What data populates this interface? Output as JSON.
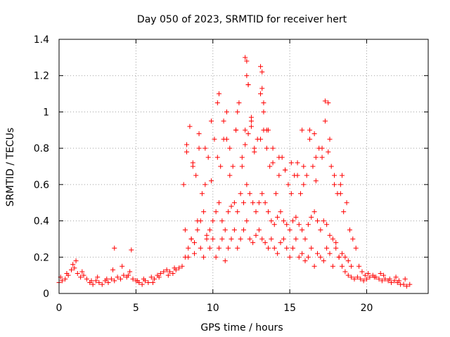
{
  "chart_data": {
    "type": "scatter",
    "title": "Day 050 of 2023, SRMTID for receiver hert",
    "xlabel": "GPS time / hours",
    "ylabel": "SRMTID / TECUs",
    "xlim": [
      0,
      24
    ],
    "ylim": [
      0,
      1.4
    ],
    "xticks": [
      0,
      5,
      10,
      15,
      20
    ],
    "xtick_labels": [
      "0",
      "5",
      "10",
      "15",
      "20"
    ],
    "yticks": [
      0,
      0.2,
      0.4,
      0.6,
      0.8,
      1.0,
      1.2,
      1.4
    ],
    "ytick_labels": [
      "0",
      "0.2",
      "0.4",
      "0.6",
      "0.8",
      "1",
      "1.2",
      "1.4"
    ],
    "grid": true,
    "marker": "+",
    "color": "#ff0000",
    "series": [
      {
        "name": "hert",
        "x": [
          0.0,
          0.2,
          0.4,
          0.6,
          0.8,
          1.0,
          1.2,
          1.4,
          1.6,
          1.8,
          2.0,
          2.2,
          2.4,
          2.6,
          2.8,
          3.0,
          3.2,
          3.4,
          3.6,
          3.8,
          4.0,
          4.2,
          4.4,
          4.6,
          4.8,
          5.0,
          5.2,
          5.4,
          5.6,
          5.8,
          6.0,
          6.2,
          6.4,
          6.6,
          6.8,
          7.0,
          7.2,
          7.4,
          7.6,
          7.8,
          8.0,
          8.2,
          8.4,
          8.6,
          8.8,
          9.0,
          9.2,
          9.4,
          9.6,
          9.8,
          10.0,
          10.2,
          10.4,
          10.6,
          10.8,
          11.0,
          11.2,
          11.4,
          11.6,
          11.8,
          12.0,
          12.2,
          12.4,
          12.6,
          12.8,
          13.0,
          13.2,
          13.4,
          13.6,
          13.8,
          14.0,
          14.2,
          14.4,
          14.6,
          14.8,
          15.0,
          15.2,
          15.4,
          15.6,
          15.8,
          16.0,
          16.2,
          16.4,
          16.6,
          16.8,
          17.0,
          17.2,
          17.4,
          17.6,
          17.8,
          18.0,
          18.2,
          18.4,
          18.6,
          18.8,
          19.0,
          19.2,
          19.4,
          19.6,
          19.8,
          20.0,
          20.2,
          20.4,
          20.6,
          20.8,
          21.0,
          21.2,
          21.4,
          21.6,
          21.8,
          22.0,
          22.2,
          22.4,
          22.6,
          22.8,
          0.1,
          0.5,
          0.9,
          1.1,
          1.5,
          2.1,
          2.5,
          3.1,
          3.5,
          3.6,
          4.1,
          4.5,
          4.7,
          5.1,
          5.5,
          6.1,
          6.5,
          7.1,
          7.5,
          8.1,
          8.3,
          8.5,
          8.7,
          8.9,
          9.1,
          9.3,
          9.5,
          9.7,
          9.9,
          10.1,
          10.3,
          10.5,
          10.7,
          10.9,
          11.1,
          11.3,
          11.5,
          11.7,
          11.9,
          12.1,
          12.2,
          12.3,
          12.5,
          12.7,
          12.9,
          13.1,
          13.2,
          13.3,
          13.5,
          13.7,
          13.9,
          14.1,
          14.3,
          14.5,
          14.7,
          14.9,
          15.1,
          15.3,
          15.5,
          15.7,
          15.9,
          16.1,
          16.3,
          16.5,
          16.7,
          16.9,
          17.1,
          17.3,
          17.5,
          17.7,
          17.9,
          18.1,
          18.3,
          18.5,
          18.7,
          18.9,
          19.1,
          19.3,
          19.5,
          19.7,
          19.9,
          20.1,
          20.5,
          20.9,
          21.1,
          21.5,
          21.9,
          22.1,
          22.5,
          8.2,
          8.4,
          8.6,
          8.8,
          9.0,
          9.2,
          9.4,
          9.6,
          9.8,
          10.0,
          10.2,
          10.4,
          10.6,
          10.8,
          11.0,
          11.2,
          11.4,
          11.6,
          11.8,
          12.0,
          12.2,
          12.4,
          12.6,
          12.8,
          13.0,
          13.2,
          13.4,
          13.6,
          13.8,
          14.0,
          14.2,
          14.4,
          14.6,
          14.8,
          15.0,
          15.2,
          15.4,
          15.6,
          15.8,
          16.0,
          16.2,
          16.4,
          16.6,
          16.8,
          17.0,
          17.2,
          17.4,
          17.6,
          17.8,
          18.0,
          18.2,
          18.4,
          18.6,
          18.8,
          19.0,
          8.3,
          8.7,
          9.1,
          9.5,
          9.9,
          10.3,
          10.7,
          11.1,
          11.5,
          11.9,
          12.1,
          12.3,
          12.5,
          12.7,
          13.1,
          13.3,
          13.5,
          13.9,
          14.3,
          14.7,
          15.1,
          15.5,
          15.9,
          16.3,
          16.7,
          17.1,
          17.5,
          17.9,
          18.3,
          10.4,
          10.9,
          11.6,
          12.1,
          12.2,
          12.3,
          12.5,
          13.1,
          13.2,
          13.3,
          13.6,
          15.8,
          16.6,
          17.3,
          17.6,
          18.4
        ],
        "y": [
          0.06,
          0.07,
          0.08,
          0.1,
          0.13,
          0.14,
          0.11,
          0.09,
          0.1,
          0.08,
          0.06,
          0.05,
          0.07,
          0.06,
          0.05,
          0.07,
          0.06,
          0.08,
          0.07,
          0.09,
          0.08,
          0.1,
          0.09,
          0.12,
          0.08,
          0.07,
          0.06,
          0.05,
          0.07,
          0.06,
          0.09,
          0.08,
          0.1,
          0.11,
          0.12,
          0.13,
          0.12,
          0.11,
          0.13,
          0.14,
          0.15,
          0.2,
          0.25,
          0.3,
          0.28,
          0.35,
          0.4,
          0.45,
          0.3,
          0.35,
          0.4,
          0.45,
          0.5,
          0.4,
          0.35,
          0.45,
          0.48,
          0.5,
          0.45,
          0.55,
          0.5,
          0.6,
          0.55,
          0.5,
          0.45,
          0.5,
          0.55,
          0.5,
          0.45,
          0.4,
          0.38,
          0.42,
          0.45,
          0.4,
          0.38,
          0.35,
          0.4,
          0.42,
          0.38,
          0.35,
          0.3,
          0.38,
          0.42,
          0.45,
          0.4,
          0.35,
          0.4,
          0.38,
          0.32,
          0.3,
          0.28,
          0.2,
          0.15,
          0.12,
          0.1,
          0.09,
          0.08,
          0.09,
          0.08,
          0.07,
          0.08,
          0.09,
          0.1,
          0.09,
          0.08,
          0.07,
          0.08,
          0.07,
          0.06,
          0.07,
          0.06,
          0.05,
          0.05,
          0.04,
          0.05,
          0.09,
          0.11,
          0.16,
          0.18,
          0.12,
          0.07,
          0.09,
          0.08,
          0.13,
          0.25,
          0.15,
          0.1,
          0.24,
          0.07,
          0.08,
          0.06,
          0.09,
          0.1,
          0.14,
          0.6,
          0.78,
          0.92,
          0.7,
          0.65,
          0.8,
          0.55,
          0.6,
          0.75,
          0.62,
          0.85,
          1.05,
          0.7,
          0.95,
          0.85,
          0.65,
          0.7,
          0.9,
          1.05,
          0.75,
          0.9,
          1.28,
          1.15,
          0.95,
          0.8,
          0.85,
          1.1,
          1.22,
          1.05,
          0.9,
          0.7,
          0.8,
          0.55,
          0.65,
          0.75,
          0.68,
          0.6,
          0.55,
          0.65,
          0.72,
          0.55,
          0.6,
          0.65,
          0.9,
          0.7,
          0.62,
          0.8,
          0.75,
          0.95,
          1.05,
          0.7,
          0.65,
          0.55,
          0.6,
          0.45,
          0.5,
          0.35,
          0.3,
          0.25,
          0.15,
          0.12,
          0.1,
          0.11,
          0.09,
          0.11,
          0.1,
          0.08,
          0.09,
          0.07,
          0.08,
          0.35,
          0.2,
          0.3,
          0.22,
          0.4,
          0.25,
          0.2,
          0.32,
          0.25,
          0.3,
          0.2,
          0.25,
          0.3,
          0.18,
          0.25,
          0.3,
          0.35,
          0.25,
          0.3,
          0.35,
          0.4,
          0.3,
          0.28,
          0.32,
          0.35,
          0.3,
          0.28,
          0.25,
          0.3,
          0.25,
          0.22,
          0.28,
          0.3,
          0.25,
          0.2,
          0.25,
          0.3,
          0.2,
          0.22,
          0.18,
          0.2,
          0.25,
          0.15,
          0.22,
          0.2,
          0.18,
          0.25,
          0.22,
          0.15,
          0.25,
          0.2,
          0.22,
          0.2,
          0.18,
          0.15,
          0.82,
          0.72,
          0.88,
          0.8,
          0.95,
          0.75,
          0.85,
          0.8,
          0.9,
          0.7,
          0.82,
          0.88,
          0.92,
          0.78,
          0.85,
          0.9,
          0.8,
          0.72,
          0.75,
          0.68,
          0.72,
          0.65,
          0.7,
          0.85,
          0.75,
          0.8,
          0.78,
          0.6,
          0.55,
          1.1,
          1.0,
          1.0,
          1.3,
          1.2,
          1.15,
          0.97,
          1.25,
          1.13,
          1.0,
          0.9,
          0.9,
          0.88,
          1.06,
          0.85,
          0.65
        ]
      }
    ]
  }
}
